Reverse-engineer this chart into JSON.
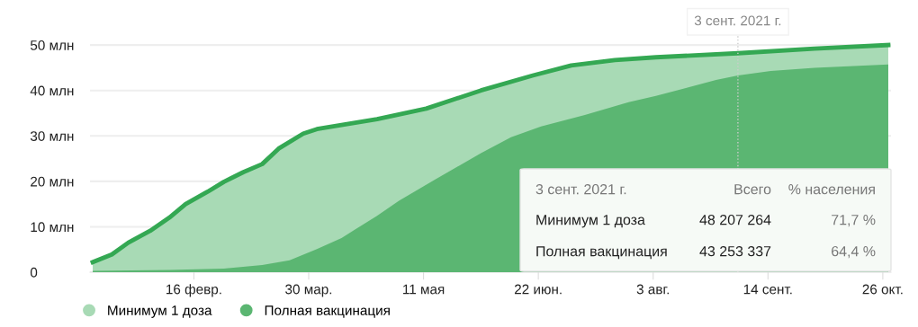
{
  "chart_data": {
    "type": "area",
    "series": [
      {
        "name": "Минимум 1 доза",
        "color": "#a8dab5",
        "x": [
          "2021-01-10",
          "2021-01-17",
          "2021-01-23",
          "2021-01-31",
          "2021-02-07",
          "2021-02-13",
          "2021-02-21",
          "2021-02-27",
          "2021-03-06",
          "2021-03-13",
          "2021-03-19",
          "2021-03-28",
          "2021-04-02",
          "2021-04-12",
          "2021-04-24",
          "2021-05-12",
          "2021-06-01",
          "2021-06-20",
          "2021-07-04",
          "2021-07-20",
          "2021-08-04",
          "2021-09-03",
          "2021-10-01",
          "2021-10-28"
        ],
        "values": [
          2.2,
          3.9,
          6.5,
          9.1,
          12.0,
          15.0,
          17.7,
          19.9,
          22.0,
          23.8,
          27.2,
          30.5,
          31.5,
          32.5,
          33.7,
          36.0,
          40.0,
          43.3,
          45.5,
          46.7,
          47.3,
          48.2,
          49.2,
          50.0
        ]
      },
      {
        "name": "Полная вакцинация",
        "color": "#5bb672",
        "x": [
          "2021-01-10",
          "2021-02-07",
          "2021-02-27",
          "2021-03-13",
          "2021-03-23",
          "2021-04-02",
          "2021-04-11",
          "2021-04-17",
          "2021-04-24",
          "2021-05-02",
          "2021-05-15",
          "2021-06-01",
          "2021-06-12",
          "2021-06-23",
          "2021-07-09",
          "2021-07-25",
          "2021-08-04",
          "2021-08-26",
          "2021-09-03",
          "2021-09-15",
          "2021-10-01",
          "2021-10-28"
        ],
        "values": [
          0.3,
          0.5,
          0.8,
          1.6,
          2.6,
          5.1,
          7.5,
          9.8,
          12.4,
          15.7,
          20.3,
          26.2,
          29.7,
          32.1,
          34.6,
          37.4,
          38.8,
          42.3,
          43.3,
          44.3,
          45.0,
          45.7
        ]
      }
    ],
    "xlim": [
      "2021-01-09",
      "2021-10-29"
    ],
    "xticks": [
      {
        "value": "2021-02-16",
        "label": "16 февр."
      },
      {
        "value": "2021-03-30",
        "label": "30 мар."
      },
      {
        "value": "2021-05-11",
        "label": "11 мая"
      },
      {
        "value": "2021-06-22",
        "label": "22 июн."
      },
      {
        "value": "2021-08-03",
        "label": "3 авг."
      },
      {
        "value": "2021-09-14",
        "label": "14 сент."
      },
      {
        "value": "2021-10-26",
        "label": "26 окт."
      }
    ],
    "ylim": [
      0,
      52
    ],
    "yticks": [
      0,
      {
        "value": 10,
        "label": "10 млн"
      },
      {
        "value": 20,
        "label": "20 млн"
      },
      {
        "value": 30,
        "label": "30 млн"
      },
      {
        "value": 40,
        "label": "40 млн"
      },
      {
        "value": 50,
        "label": "50 млн"
      }
    ],
    "grid": "y",
    "legend": "bottom",
    "ref_lines": [
      {
        "axis": "x",
        "value": "2021-09-03",
        "label": "3 сент. 2021 г.",
        "color": "#cccccc",
        "line_style": "dotted"
      }
    ],
    "annotations": [
      "3 сент. 2021 г.",
      "Всего",
      "% населения",
      "Минимум 1 доза",
      "48 207 264",
      "71,7 %",
      "Полная вакцинация",
      "43 253 337",
      "64,4 %"
    ]
  }
}
